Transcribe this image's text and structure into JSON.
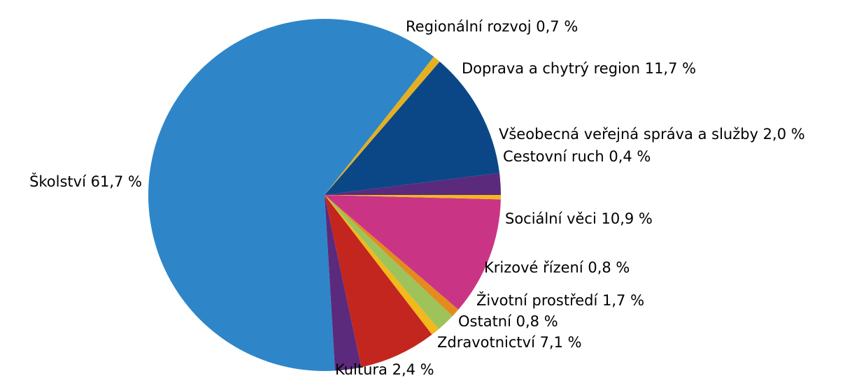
{
  "chart_data": {
    "type": "pie",
    "start_angle_deg": 0,
    "direction": "counterclockwise",
    "slices": [
      {
        "label": "Všeobecná veřejná správa a služby 2,0 %",
        "name": "Všeobecná veřejná správa a služby",
        "value": 2.0,
        "color": "#5b2a7d"
      },
      {
        "label": "Doprava a chytrý region 11,7 %",
        "name": "Doprava a chytrý region",
        "value": 11.7,
        "color": "#0b4787"
      },
      {
        "label": "Regionální rozvoj 0,7 %",
        "name": "Regionální rozvoj",
        "value": 0.7,
        "color": "#e4b021"
      },
      {
        "label": "Školství 61,7 %",
        "name": "Školství",
        "value": 61.7,
        "color": "#2e86c8"
      },
      {
        "label": "Kultura 2,4 %",
        "name": "Kultura",
        "value": 2.4,
        "color": "#5b2a7d"
      },
      {
        "label": "Zdravotnictví 7,1 %",
        "name": "Zdravotnictví",
        "value": 7.1,
        "color": "#c3261e"
      },
      {
        "label": "Ostatní 0,8 %",
        "name": "Ostatní",
        "value": 0.8,
        "color": "#f2b81c"
      },
      {
        "label": "Životní prostředí 1,7 %",
        "name": "Životní prostředí",
        "value": 1.7,
        "color": "#9dc35a"
      },
      {
        "label": "Krizové řízení 0,8 %",
        "name": "Krizové řízení",
        "value": 0.8,
        "color": "#e48b1f"
      },
      {
        "label": "Sociální věci 10,9 %",
        "name": "Sociální věci",
        "value": 10.9,
        "color": "#c93584"
      },
      {
        "label": "Cestovní ruch 0,4 %",
        "name": "Cestovní ruch",
        "value": 0.4,
        "color": "#f2b81c"
      }
    ]
  }
}
